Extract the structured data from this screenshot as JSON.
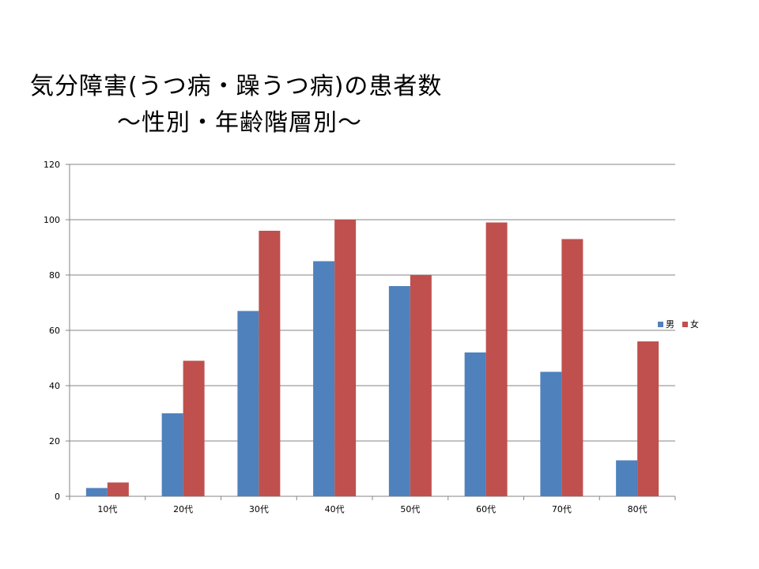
{
  "title": {
    "line1": "気分障害(うつ病・躁うつ病)の患者数",
    "line2": "～性別・年齢階層別～"
  },
  "chart_data": {
    "type": "bar",
    "categories": [
      "10代",
      "20代",
      "30代",
      "40代",
      "50代",
      "60代",
      "70代",
      "80代"
    ],
    "series": [
      {
        "name": "男",
        "color": "#4f81bd",
        "values": [
          3,
          30,
          67,
          85,
          76,
          52,
          45,
          13
        ]
      },
      {
        "name": "女",
        "color": "#c0504d",
        "values": [
          5,
          49,
          96,
          100,
          80,
          99,
          93,
          56
        ]
      }
    ],
    "ylim": [
      0,
      120
    ],
    "yticks": [
      0,
      20,
      40,
      60,
      80,
      100,
      120
    ],
    "grid": true,
    "legend": "right"
  }
}
